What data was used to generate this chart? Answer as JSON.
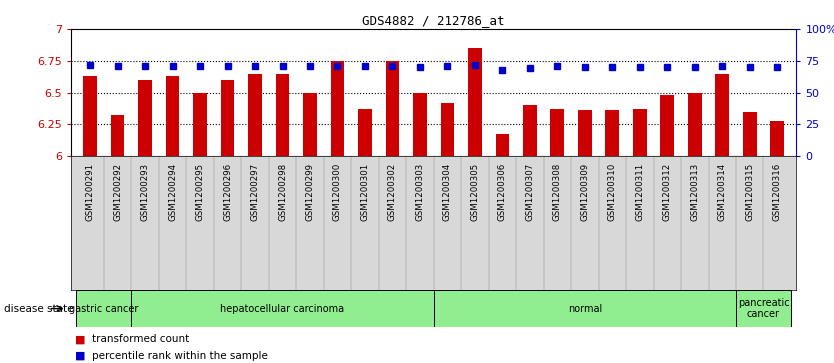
{
  "title": "GDS4882 / 212786_at",
  "categories": [
    "GSM1200291",
    "GSM1200292",
    "GSM1200293",
    "GSM1200294",
    "GSM1200295",
    "GSM1200296",
    "GSM1200297",
    "GSM1200298",
    "GSM1200299",
    "GSM1200300",
    "GSM1200301",
    "GSM1200302",
    "GSM1200303",
    "GSM1200304",
    "GSM1200305",
    "GSM1200306",
    "GSM1200307",
    "GSM1200308",
    "GSM1200309",
    "GSM1200310",
    "GSM1200311",
    "GSM1200312",
    "GSM1200313",
    "GSM1200314",
    "GSM1200315",
    "GSM1200316"
  ],
  "bar_values": [
    6.63,
    6.32,
    6.6,
    6.63,
    6.5,
    6.6,
    6.65,
    6.65,
    6.5,
    6.75,
    6.37,
    6.75,
    6.5,
    6.42,
    6.85,
    6.17,
    6.4,
    6.37,
    6.36,
    6.36,
    6.37,
    6.48,
    6.5,
    6.65,
    6.35,
    6.28
  ],
  "percentile_values": [
    72,
    71,
    71,
    71,
    71,
    71,
    71,
    71,
    71,
    71,
    71,
    71,
    70,
    71,
    72,
    68,
    69,
    71,
    70,
    70,
    70,
    70,
    70,
    71,
    70,
    70
  ],
  "bar_color": "#CC0000",
  "percentile_color": "#0000CC",
  "ylim_left": [
    6.0,
    7.0
  ],
  "ylim_right": [
    0,
    100
  ],
  "yticks_left": [
    6.0,
    6.25,
    6.5,
    6.75,
    7.0
  ],
  "ytick_labels_left": [
    "6",
    "6.25",
    "6.5",
    "6.75",
    "7"
  ],
  "yticks_right": [
    0,
    25,
    50,
    75,
    100
  ],
  "ytick_labels_right": [
    "0",
    "25",
    "50",
    "75",
    "100%"
  ],
  "grid_values": [
    6.25,
    6.5,
    6.75
  ],
  "disease_groups": [
    {
      "label": "gastric cancer",
      "start": 0,
      "end": 2,
      "color": "#90EE90"
    },
    {
      "label": "hepatocellular carcinoma",
      "start": 2,
      "end": 13,
      "color": "#90EE90"
    },
    {
      "label": "normal",
      "start": 13,
      "end": 24,
      "color": "#90EE90"
    },
    {
      "label": "pancreatic\ncancer",
      "start": 24,
      "end": 26,
      "color": "#90EE90"
    }
  ],
  "legend_bar_label": "transformed count",
  "legend_dot_label": "percentile rank within the sample",
  "disease_state_label": "disease state",
  "bar_width": 0.5,
  "background_color": "#ffffff"
}
